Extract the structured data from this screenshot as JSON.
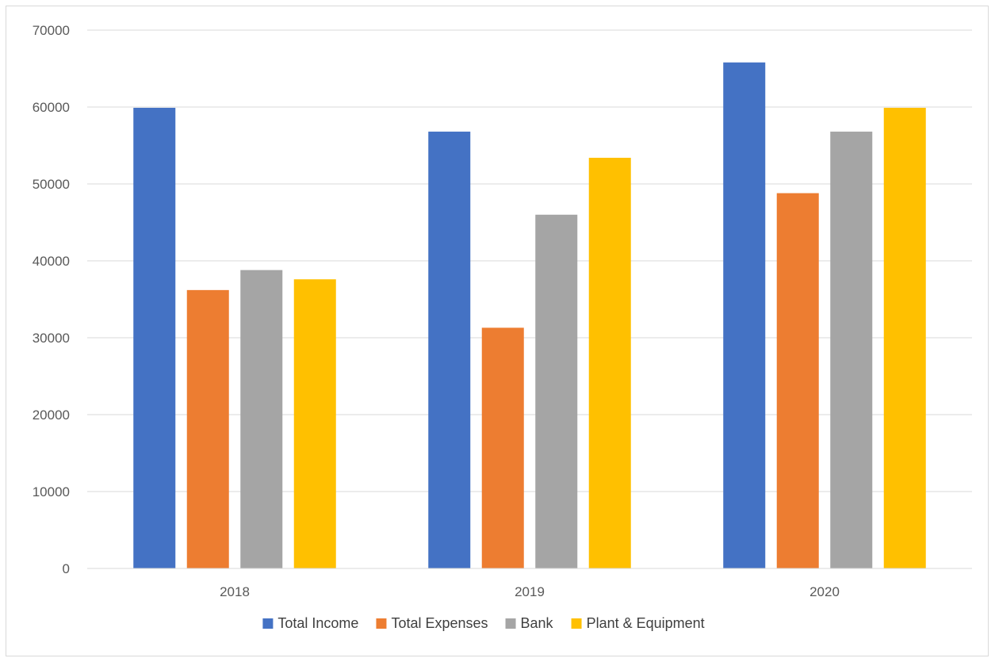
{
  "chart_data": {
    "type": "bar",
    "categories": [
      "2018",
      "2019",
      "2020"
    ],
    "series": [
      {
        "name": "Total Income",
        "color": "#4472C4",
        "values": [
          59900,
          56800,
          65800
        ]
      },
      {
        "name": "Total Expenses",
        "color": "#ED7D31",
        "values": [
          36200,
          31300,
          48800
        ]
      },
      {
        "name": "Bank",
        "color": "#A5A5A5",
        "values": [
          38800,
          46000,
          56800
        ]
      },
      {
        "name": "Plant & Equipment",
        "color": "#FFC000",
        "values": [
          37600,
          53400,
          59900
        ]
      }
    ],
    "ylim": [
      0,
      70000
    ],
    "yticks": [
      0,
      10000,
      20000,
      30000,
      40000,
      50000,
      60000,
      70000
    ],
    "grid": true,
    "legend_position": "bottom"
  }
}
